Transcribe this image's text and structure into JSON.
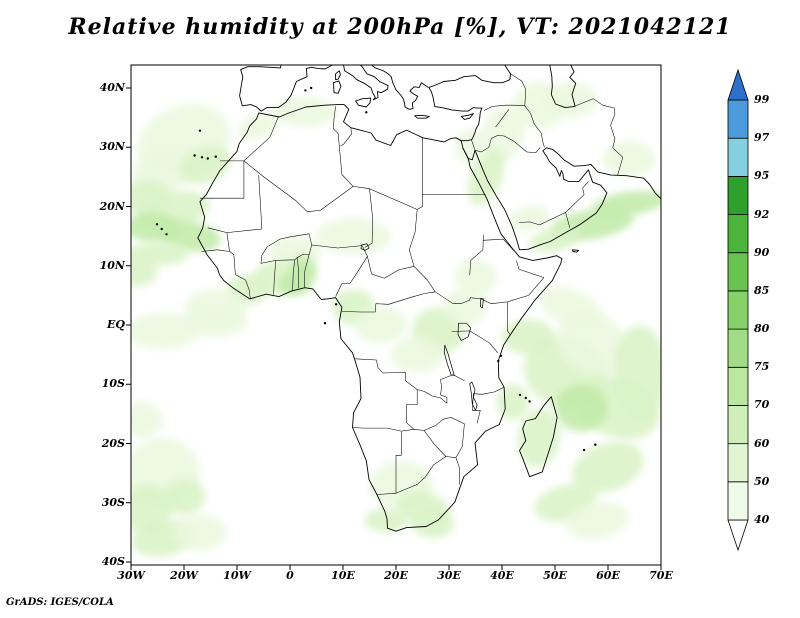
{
  "title": "Relative humidity at 200hPa [%], VT: 2021042121",
  "credit": "GrADS: IGES/COLA",
  "chart_data": {
    "type": "heatmap",
    "title": "Relative humidity at 200hPa [%]",
    "valid_time_label": "VT: 2021042121",
    "variable": "Relative humidity",
    "level": "200hPa",
    "units": "%",
    "projection": "lat/lon over Africa",
    "lon_range": [
      -30,
      70
    ],
    "lat_range": [
      -40.5,
      43.9
    ],
    "grid": false,
    "legend_position": "right colorbar",
    "x_tick_labels": [
      "30W",
      "20W",
      "10W",
      "0",
      "10E",
      "20E",
      "30E",
      "40E",
      "50E",
      "60E",
      "70E"
    ],
    "x_tick_lons": [
      -30,
      -20,
      -10,
      0,
      10,
      20,
      30,
      40,
      50,
      60,
      70
    ],
    "y_tick_labels": [
      "40N",
      "30N",
      "20N",
      "10N",
      "EQ",
      "10S",
      "20S",
      "30S",
      "40S"
    ],
    "y_tick_lats": [
      40,
      30,
      20,
      10,
      0,
      -10,
      -20,
      -30,
      -40
    ],
    "colorbar": {
      "levels": [
        40,
        50,
        60,
        70,
        75,
        80,
        85,
        90,
        92,
        95,
        97,
        99
      ],
      "colors": [
        "#ffffff",
        "#f0fae9",
        "#e1f5d3",
        "#cfeeba",
        "#bbe7a1",
        "#a3dc86",
        "#88d16a",
        "#6ac351",
        "#4cb43a",
        "#2f9f2d",
        "#85cfe0",
        "#4e9bdc",
        "#2d70cc"
      ]
    },
    "shading_levels": {
      "1": "#eaf8de",
      "2": "#d9f2c6",
      "3": "#c2eaa8",
      "4": "#a5df87"
    },
    "shading_blobs": [
      [
        -20,
        31,
        9,
        6,
        -20,
        1
      ],
      [
        -24,
        26,
        6,
        4,
        -30,
        1
      ],
      [
        -16,
        27,
        5,
        3,
        -20,
        2
      ],
      [
        -27,
        21.5,
        4.5,
        3,
        0,
        2
      ],
      [
        -22,
        19.5,
        7,
        3,
        -10,
        2
      ],
      [
        -26,
        16.5,
        5,
        2.5,
        0,
        3
      ],
      [
        -19,
        15,
        6,
        2.5,
        8,
        3
      ],
      [
        -25,
        12,
        6,
        2,
        0,
        2
      ],
      [
        -29,
        9,
        4,
        2.5,
        0,
        2
      ],
      [
        3,
        36,
        6,
        2.5,
        0,
        1
      ],
      [
        -6,
        33.5,
        4,
        2,
        -20,
        1
      ],
      [
        12,
        15,
        7,
        3,
        0,
        1
      ],
      [
        1,
        12.5,
        5,
        2.5,
        0,
        1
      ],
      [
        -1,
        8,
        6,
        3,
        0,
        2
      ],
      [
        0.8,
        7,
        3,
        2,
        0,
        3
      ],
      [
        -8,
        6,
        4,
        2.5,
        0,
        2
      ],
      [
        2.5,
        9.5,
        2.5,
        2,
        0,
        3
      ],
      [
        -14,
        3,
        6,
        3,
        0,
        1
      ],
      [
        -24,
        -1,
        7,
        3,
        0,
        1
      ],
      [
        -14,
        0.5,
        6,
        2.5,
        0,
        1
      ],
      [
        12,
        3,
        4,
        3,
        0,
        2
      ],
      [
        17,
        0,
        5,
        3,
        0,
        1
      ],
      [
        28,
        -1,
        5,
        4,
        0,
        2
      ],
      [
        33,
        3,
        4,
        3,
        0,
        1
      ],
      [
        35,
        8,
        4,
        3,
        0,
        1
      ],
      [
        24,
        -5,
        5,
        3,
        0,
        1
      ],
      [
        45,
        -2,
        5,
        3,
        0,
        2
      ],
      [
        53,
        3,
        6,
        3,
        20,
        1
      ],
      [
        52,
        -8,
        8,
        6,
        20,
        2
      ],
      [
        57,
        -3,
        7,
        5,
        30,
        1
      ],
      [
        62,
        -14,
        8,
        5,
        20,
        2
      ],
      [
        55,
        -14,
        5,
        4,
        0,
        3
      ],
      [
        47,
        -19,
        4,
        5,
        10,
        2
      ],
      [
        60,
        -24,
        7,
        4,
        -20,
        2
      ],
      [
        66,
        -8,
        5,
        8,
        0,
        2
      ],
      [
        42,
        -13,
        3,
        3,
        0,
        2
      ],
      [
        52,
        -30,
        6,
        3,
        -15,
        2
      ],
      [
        58,
        -33,
        6,
        3,
        -10,
        1
      ],
      [
        57,
        17,
        8,
        2.5,
        -10,
        3
      ],
      [
        64,
        20.5,
        7,
        2,
        -8,
        3
      ],
      [
        50,
        14.5,
        5,
        2,
        -15,
        2
      ],
      [
        45,
        18,
        4,
        2,
        -15,
        1
      ],
      [
        64,
        28,
        5,
        3,
        0,
        1
      ],
      [
        40,
        32,
        4,
        5,
        20,
        1
      ],
      [
        37,
        25,
        3,
        5,
        20,
        2
      ],
      [
        34,
        30,
        3,
        3,
        0,
        1
      ],
      [
        47,
        37,
        5,
        4,
        0,
        1
      ],
      [
        53,
        38,
        5,
        3,
        0,
        1
      ],
      [
        -24,
        -25,
        7,
        6,
        0,
        1
      ],
      [
        -27,
        -31,
        5,
        4,
        -20,
        2
      ],
      [
        -24,
        -36,
        6,
        3,
        -10,
        2
      ],
      [
        -17,
        -35,
        5,
        3,
        0,
        1
      ],
      [
        -28,
        -16,
        4,
        3,
        0,
        1
      ],
      [
        -20,
        -29,
        4,
        3,
        0,
        2
      ],
      [
        21,
        -27,
        6,
        4,
        0,
        1
      ],
      [
        25,
        -31,
        5,
        3,
        10,
        2
      ],
      [
        27,
        -33.5,
        4,
        2.5,
        0,
        2
      ],
      [
        18,
        -33,
        4,
        2,
        0,
        2
      ]
    ]
  }
}
